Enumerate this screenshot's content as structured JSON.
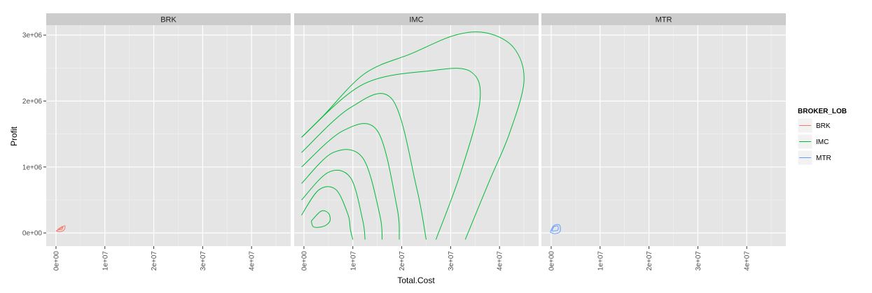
{
  "chart_data": {
    "type": "contour",
    "xlabel": "Total.Cost",
    "ylabel": "Profit",
    "xlim": [
      -2000000,
      48000000
    ],
    "ylim": [
      -200000,
      3150000
    ],
    "x_ticks": [
      {
        "value": 0,
        "label": "0e+00"
      },
      {
        "value": 10000000,
        "label": "1e+07"
      },
      {
        "value": 20000000,
        "label": "2e+07"
      },
      {
        "value": 30000000,
        "label": "3e+07"
      },
      {
        "value": 40000000,
        "label": "4e+07"
      }
    ],
    "y_ticks": [
      {
        "value": 0,
        "label": "0e+00"
      },
      {
        "value": 1000000,
        "label": "1e+06"
      },
      {
        "value": 2000000,
        "label": "2e+06"
      },
      {
        "value": 3000000,
        "label": "3e+06"
      }
    ],
    "grid": true,
    "legend": {
      "title": "BROKER_LOB",
      "position": "right",
      "entries": [
        {
          "name": "BRK",
          "color": "#F8766D"
        },
        {
          "name": "IMC",
          "color": "#00BA38"
        },
        {
          "name": "MTR",
          "color": "#619CFF"
        }
      ]
    },
    "panels": [
      {
        "label": "BRK",
        "color": "#F8766D",
        "contours": [
          [
            [
              0,
              30000
            ],
            [
              800000,
              60000
            ],
            [
              1800000,
              110000
            ],
            [
              1700000,
              50000
            ],
            [
              900000,
              20000
            ],
            [
              0,
              30000
            ]
          ],
          [
            [
              300000,
              50000
            ],
            [
              900000,
              80000
            ],
            [
              1400000,
              100000
            ],
            [
              1200000,
              55000
            ],
            [
              300000,
              50000
            ]
          ]
        ]
      },
      {
        "label": "IMC",
        "color": "#00BA38",
        "contours": [
          [
            [
              1500000,
              180000
            ],
            [
              3500000,
              330000
            ],
            [
              5000000,
              300000
            ],
            [
              5300000,
              180000
            ],
            [
              4000000,
              100000
            ],
            [
              2000000,
              90000
            ],
            [
              1500000,
              180000
            ]
          ],
          [
            [
              -500000,
              270000
            ],
            [
              3000000,
              650000
            ],
            [
              6500000,
              660000
            ],
            [
              9000000,
              280000
            ],
            [
              9500000,
              50000
            ],
            [
              10000000,
              -100000
            ]
          ],
          [
            [
              -500000,
              500000
            ],
            [
              5000000,
              920000
            ],
            [
              9500000,
              840000
            ],
            [
              12000000,
              200000
            ],
            [
              12500000,
              -100000
            ]
          ],
          [
            [
              -500000,
              750000
            ],
            [
              6000000,
              1220000
            ],
            [
              12000000,
              1140000
            ],
            [
              15500000,
              280000
            ],
            [
              16000000,
              -100000
            ]
          ],
          [
            [
              -500000,
              1000000
            ],
            [
              8000000,
              1550000
            ],
            [
              15000000,
              1550000
            ],
            [
              19000000,
              400000
            ],
            [
              19500000,
              -100000
            ]
          ],
          [
            [
              -500000,
              1220000
            ],
            [
              9500000,
              1900000
            ],
            [
              18000000,
              2030000
            ],
            [
              23000000,
              700000
            ],
            [
              25000000,
              -100000
            ]
          ],
          [
            [
              -500000,
              1450000
            ],
            [
              12000000,
              2250000
            ],
            [
              26000000,
              2460000
            ],
            [
              34000000,
              2450000
            ],
            [
              36000000,
              2000000
            ],
            [
              32000000,
              900000
            ],
            [
              27000000,
              -100000
            ]
          ],
          [
            [
              -500000,
              1450000
            ],
            [
              4000000,
              1780000
            ],
            [
              12500000,
              2420000
            ],
            [
              22000000,
              2720000
            ],
            [
              31000000,
              3000000
            ],
            [
              37500000,
              3030000
            ],
            [
              43000000,
              2800000
            ],
            [
              45000000,
              2300000
            ],
            [
              42000000,
              1500000
            ],
            [
              38000000,
              800000
            ],
            [
              33000000,
              -100000
            ]
          ]
        ]
      },
      {
        "label": "MTR",
        "color": "#619CFF",
        "contours": [
          [
            [
              -200000,
              10000
            ],
            [
              500000,
              110000
            ],
            [
              1700000,
              120000
            ],
            [
              1800000,
              20000
            ],
            [
              800000,
              -10000
            ],
            [
              -200000,
              10000
            ]
          ],
          [
            [
              100000,
              30000
            ],
            [
              600000,
              95000
            ],
            [
              1400000,
              100000
            ],
            [
              1300000,
              40000
            ],
            [
              100000,
              30000
            ]
          ]
        ]
      }
    ]
  }
}
